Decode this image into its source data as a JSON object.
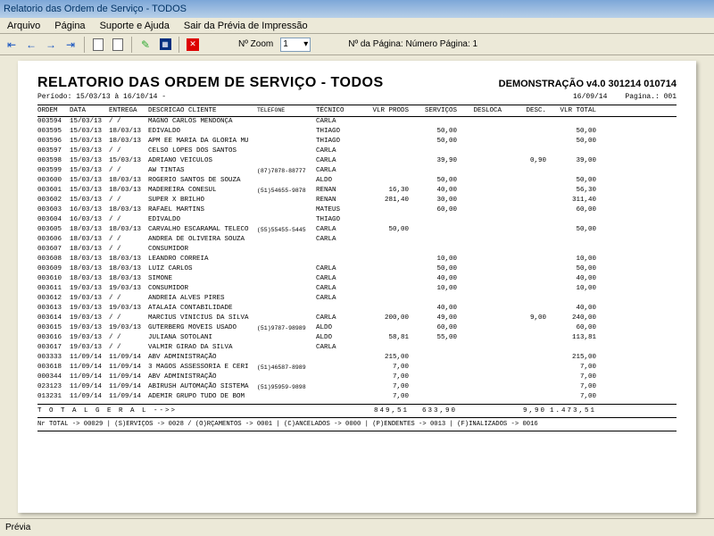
{
  "window": {
    "title": "Relatorio das Ordem de Serviço - TODOS"
  },
  "menu": {
    "arquivo": "Arquivo",
    "pagina": "Página",
    "suporte": "Suporte e Ajuda",
    "sair": "Sair da Prévia de Impressão"
  },
  "toolbar": {
    "zoom_label": "Nº Zoom",
    "zoom_value": "1",
    "pagenum_label": "Nº da Página: Número Página: 1"
  },
  "report": {
    "title": "RELATORIO DAS ORDEM DE SERVIÇO  - TODOS",
    "demo": "DEMONSTRAÇÃO v4.0 301214 010714",
    "periodo": "Período: 15/03/13 à 16/10/14 -",
    "date": "16/09/14",
    "pagina": "Pagina.: 001",
    "cols": {
      "ordem": "ORDEM",
      "data": "DATA",
      "entrega": "ENTREGA",
      "desc": "DESCRICAO CLIENTE",
      "tel": "TELEFONE",
      "tec": "TÉCNICO",
      "vp": "VLR PRODS",
      "sv": "SERVIÇOS",
      "dl": "DESLOCA",
      "ds": "DESC.",
      "tt": "VLR TOTAL"
    },
    "rows": [
      {
        "o": "003594",
        "d": "15/03/13",
        "e": "/  /",
        "c": "MAGNO CARLOS MENDONÇA",
        "tel": "",
        "tec": "CARLA",
        "vp": "",
        "sv": "",
        "dl": "",
        "ds": "",
        "tt": ""
      },
      {
        "o": "003595",
        "d": "15/03/13",
        "e": "18/03/13",
        "c": "EDIVALDO",
        "tel": "",
        "tec": "THIAGO",
        "vp": "",
        "sv": "50,00",
        "dl": "",
        "ds": "",
        "tt": "50,00"
      },
      {
        "o": "003596",
        "d": "15/03/13",
        "e": "18/03/13",
        "c": "APM EE MARIA DA GLORIA MU",
        "tel": "",
        "tec": "THIAGO",
        "vp": "",
        "sv": "50,00",
        "dl": "",
        "ds": "",
        "tt": "50,00"
      },
      {
        "o": "003597",
        "d": "15/03/13",
        "e": "/  /",
        "c": "CELSO LOPES DOS SANTOS",
        "tel": "",
        "tec": "CARLA",
        "vp": "",
        "sv": "",
        "dl": "",
        "ds": "",
        "tt": ""
      },
      {
        "o": "003598",
        "d": "15/03/13",
        "e": "15/03/13",
        "c": "ADRIANO VEICULOS",
        "tel": "",
        "tec": "CARLA",
        "vp": "",
        "sv": "39,90",
        "dl": "",
        "ds": "0,90",
        "tt": "39,00"
      },
      {
        "o": "003599",
        "d": "15/03/13",
        "e": "/  /",
        "c": "AW TINTAS",
        "tel": "(87)7878-88777",
        "tec": "CARLA",
        "vp": "",
        "sv": "",
        "dl": "",
        "ds": "",
        "tt": ""
      },
      {
        "o": "003600",
        "d": "15/03/13",
        "e": "18/03/13",
        "c": "ROGERIO SANTOS DE SOUZA",
        "tel": "",
        "tec": "ALDO",
        "vp": "",
        "sv": "50,00",
        "dl": "",
        "ds": "",
        "tt": "50,00"
      },
      {
        "o": "003601",
        "d": "15/03/13",
        "e": "18/03/13",
        "c": "MADEREIRA  CONESUL",
        "tel": "(51)54655-9878",
        "tec": "RENAN",
        "vp": "16,30",
        "sv": "40,00",
        "dl": "",
        "ds": "",
        "tt": "56,30"
      },
      {
        "o": "003602",
        "d": "15/03/13",
        "e": "/  /",
        "c": "SUPER X BRILHO",
        "tel": "",
        "tec": "RENAN",
        "vp": "281,40",
        "sv": "30,00",
        "dl": "",
        "ds": "",
        "tt": "311,40"
      },
      {
        "o": "003603",
        "d": "16/03/13",
        "e": "18/03/13",
        "c": "RAFAEL MARTINS",
        "tel": "",
        "tec": "MATEUS",
        "vp": "",
        "sv": "60,00",
        "dl": "",
        "ds": "",
        "tt": "60,00"
      },
      {
        "o": "003604",
        "d": "16/03/13",
        "e": "/  /",
        "c": "EDIVALDO",
        "tel": "",
        "tec": "THIAGO",
        "vp": "",
        "sv": "",
        "dl": "",
        "ds": "",
        "tt": ""
      },
      {
        "o": "003605",
        "d": "18/03/13",
        "e": "18/03/13",
        "c": "CARVALHO ESCARAMAL TELECO",
        "tel": "(55)55455-5445",
        "tec": "CARLA",
        "vp": "50,00",
        "sv": "",
        "dl": "",
        "ds": "",
        "tt": "50,00"
      },
      {
        "o": "003606",
        "d": "18/03/13",
        "e": "/  /",
        "c": "ANDREA DE OLIVEIRA SOUZA",
        "tel": "",
        "tec": "CARLA",
        "vp": "",
        "sv": "",
        "dl": "",
        "ds": "",
        "tt": ""
      },
      {
        "o": "003607",
        "d": "18/03/13",
        "e": "/  /",
        "c": "CONSUMIDOR",
        "tel": "",
        "tec": "",
        "vp": "",
        "sv": "",
        "dl": "",
        "ds": "",
        "tt": ""
      },
      {
        "o": "003608",
        "d": "18/03/13",
        "e": "18/03/13",
        "c": "LEANDRO CORREIA",
        "tel": "",
        "tec": "",
        "vp": "",
        "sv": "10,00",
        "dl": "",
        "ds": "",
        "tt": "10,00"
      },
      {
        "o": "003609",
        "d": "18/03/13",
        "e": "18/03/13",
        "c": "LUIZ CARLOS",
        "tel": "",
        "tec": "CARLA",
        "vp": "",
        "sv": "50,00",
        "dl": "",
        "ds": "",
        "tt": "50,00"
      },
      {
        "o": "003610",
        "d": "18/03/13",
        "e": "18/03/13",
        "c": "SIMONE",
        "tel": "",
        "tec": "CARLA",
        "vp": "",
        "sv": "40,00",
        "dl": "",
        "ds": "",
        "tt": "40,00"
      },
      {
        "o": "003611",
        "d": "19/03/13",
        "e": "19/03/13",
        "c": "CONSUMIDOR",
        "tel": "",
        "tec": "CARLA",
        "vp": "",
        "sv": "10,00",
        "dl": "",
        "ds": "",
        "tt": "10,00"
      },
      {
        "o": "003612",
        "d": "19/03/13",
        "e": "/  /",
        "c": "ANDREIA ALVES PIRES",
        "tel": "",
        "tec": "CARLA",
        "vp": "",
        "sv": "",
        "dl": "",
        "ds": "",
        "tt": ""
      },
      {
        "o": "003613",
        "d": "19/03/13",
        "e": "19/03/13",
        "c": "ATALAIA CONTABILIDADE",
        "tel": "",
        "tec": "",
        "vp": "",
        "sv": "40,00",
        "dl": "",
        "ds": "",
        "tt": "40,00"
      },
      {
        "o": "003614",
        "d": "19/03/13",
        "e": "/  /",
        "c": "MARCIUS VINICIUS DA SILVA",
        "tel": "",
        "tec": "CARLA",
        "vp": "200,00",
        "sv": "49,00",
        "dl": "",
        "ds": "9,00",
        "tt": "240,00"
      },
      {
        "o": "003615",
        "d": "19/03/13",
        "e": "19/03/13",
        "c": "GUTERBERG MOVEIS USADO",
        "tel": "(51)9787-98989",
        "tec": "ALDO",
        "vp": "",
        "sv": "60,00",
        "dl": "",
        "ds": "",
        "tt": "60,00"
      },
      {
        "o": "003616",
        "d": "19/03/13",
        "e": "/  /",
        "c": "JULIANA SOTOLANI",
        "tel": "",
        "tec": "ALDO",
        "vp": "58,81",
        "sv": "55,00",
        "dl": "",
        "ds": "",
        "tt": "113,81"
      },
      {
        "o": "003617",
        "d": "19/03/13",
        "e": "/  /",
        "c": "VALMIR GIRAO DA SILVA",
        "tel": "",
        "tec": "CARLA",
        "vp": "",
        "sv": "",
        "dl": "",
        "ds": "",
        "tt": ""
      },
      {
        "o": "003333",
        "d": "11/09/14",
        "e": "11/09/14",
        "c": "ABV ADMINISTRAÇÃO",
        "tel": "",
        "tec": "",
        "vp": "215,00",
        "sv": "",
        "dl": "",
        "ds": "",
        "tt": "215,00"
      },
      {
        "o": "003618",
        "d": "11/09/14",
        "e": "11/09/14",
        "c": "3 MAGOS ASSESSORIA E CERI",
        "tel": "(51)46587-8989",
        "tec": "",
        "vp": "7,00",
        "sv": "",
        "dl": "",
        "ds": "",
        "tt": "7,00"
      },
      {
        "o": "000344",
        "d": "11/09/14",
        "e": "11/09/14",
        "c": "ABV ADMINISTRAÇÃO",
        "tel": "",
        "tec": "",
        "vp": "7,00",
        "sv": "",
        "dl": "",
        "ds": "",
        "tt": "7,00"
      },
      {
        "o": "023123",
        "d": "11/09/14",
        "e": "11/09/14",
        "c": "ABIRUSH AUTOMAÇÃO SISTEMA",
        "tel": "(51)95959-9898",
        "tec": "",
        "vp": "7,00",
        "sv": "",
        "dl": "",
        "ds": "",
        "tt": "7,00"
      },
      {
        "o": "013231",
        "d": "11/09/14",
        "e": "11/09/14",
        "c": "ADEMIR  GRUPO TUDO DE BOM",
        "tel": "",
        "tec": "",
        "vp": "7,00",
        "sv": "",
        "dl": "",
        "ds": "",
        "tt": "7,00"
      }
    ],
    "total": {
      "label": "T O T A L  G E R A L   -->>",
      "vp": "849,51",
      "sv": "633,90",
      "dl": "",
      "ds": "9,90",
      "tt": "1.473,51"
    },
    "summary": "Nr TOTAL -> 00029 | (S)ERVIÇOS -> 0028 / (O)RÇAMENTOS -> 0001 | (C)ANCELADOS -> 0000 | (P)ENDENTES -> 0013 | (F)INALIZADOS -> 0016"
  },
  "status": {
    "text": "Prévia"
  }
}
